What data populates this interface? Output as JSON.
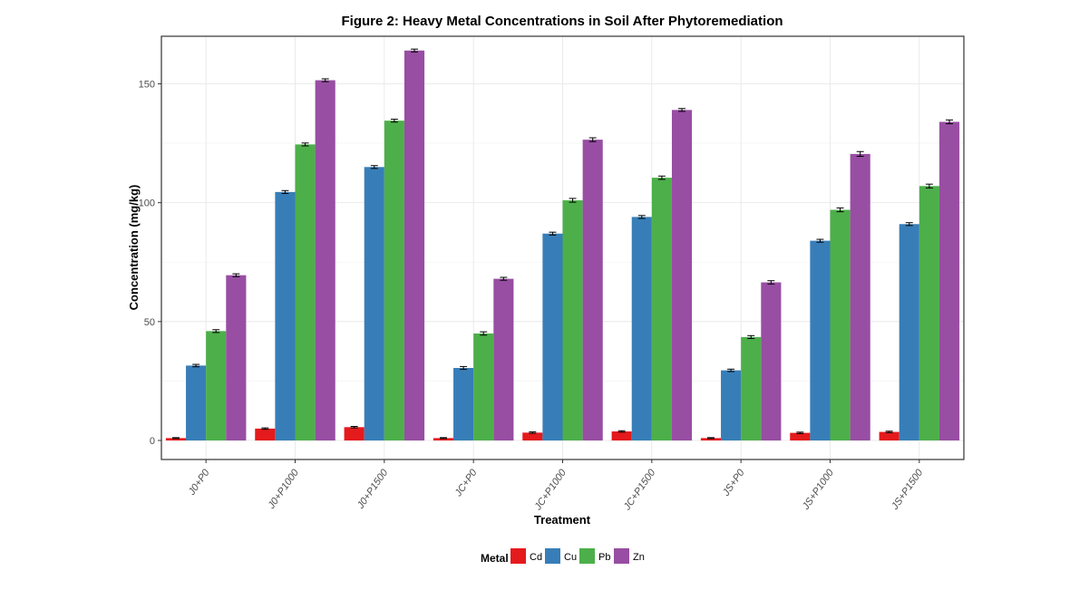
{
  "chart_data": {
    "type": "bar",
    "title": "Figure 2: Heavy Metal Concentrations in Soil After Phytoremediation",
    "xlabel": "Treatment",
    "ylabel": "Concentration (mg/kg)",
    "ylim": [
      -8,
      170
    ],
    "yticks": [
      0,
      50,
      100,
      150
    ],
    "grid": true,
    "legend_title": "Metal",
    "legend_position": "bottom",
    "categories": [
      "J0+P0",
      "J0+P1000",
      "J0+P1500",
      "JC+P0",
      "JC+P1000",
      "JC+P1500",
      "JS+P0",
      "JS+P1000",
      "JS+P1500"
    ],
    "series": [
      {
        "name": "Cd",
        "color": "#e41a1c",
        "values": [
          1.0,
          5.0,
          5.6,
          1.0,
          3.3,
          3.8,
          1.0,
          3.2,
          3.6
        ],
        "errors": [
          0.2,
          0.3,
          0.3,
          0.2,
          0.3,
          0.3,
          0.2,
          0.3,
          0.3
        ]
      },
      {
        "name": "Cu",
        "color": "#377eb8",
        "values": [
          31.5,
          104.5,
          115.0,
          30.5,
          87.0,
          94.0,
          29.5,
          84.0,
          91.0
        ],
        "errors": [
          0.5,
          0.6,
          0.6,
          0.6,
          0.6,
          0.6,
          0.5,
          0.6,
          0.6
        ]
      },
      {
        "name": "Pb",
        "color": "#4daf4a",
        "values": [
          46.0,
          124.5,
          134.5,
          45.0,
          101.0,
          110.5,
          43.5,
          97.0,
          107.0
        ],
        "errors": [
          0.6,
          0.6,
          0.6,
          0.7,
          0.8,
          0.7,
          0.6,
          0.8,
          0.8
        ]
      },
      {
        "name": "Zn",
        "color": "#984ea3",
        "values": [
          69.5,
          151.5,
          164.0,
          68.0,
          126.5,
          139.0,
          66.5,
          120.5,
          134.0
        ],
        "errors": [
          0.6,
          0.6,
          0.6,
          0.6,
          0.8,
          0.6,
          0.7,
          1.0,
          0.8
        ]
      }
    ]
  }
}
